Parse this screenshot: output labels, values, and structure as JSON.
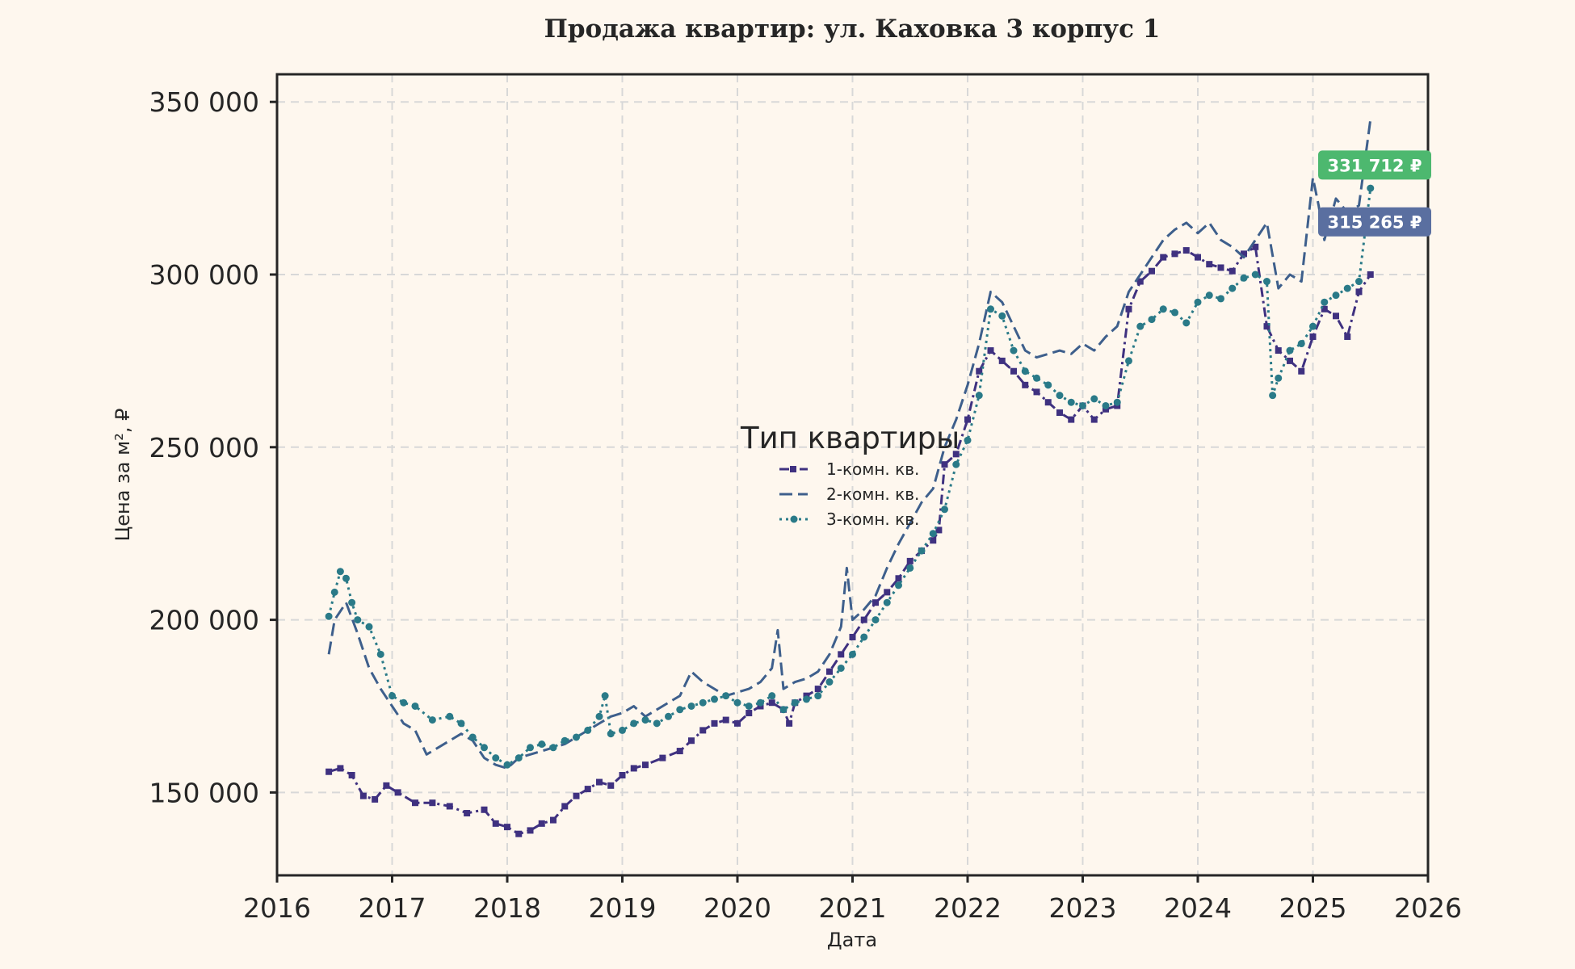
{
  "chart_data": {
    "type": "line",
    "title": "Продажа квартир: ул. Каховка 3 корпус 1",
    "xlabel": "Дата",
    "ylabel": "Цена за м², ₽",
    "xlim": [
      2016.0,
      2026.0
    ],
    "ylim": [
      126000,
      358000
    ],
    "x_ticks": [
      2016,
      2017,
      2018,
      2019,
      2020,
      2021,
      2022,
      2023,
      2024,
      2025,
      2026
    ],
    "x_tick_labels": [
      "2016",
      "2017",
      "2018",
      "2019",
      "2020",
      "2021",
      "2022",
      "2023",
      "2024",
      "2025",
      "2026"
    ],
    "y_ticks": [
      150000,
      200000,
      250000,
      300000,
      350000
    ],
    "y_tick_labels": [
      "150 000",
      "200 000",
      "250 000",
      "300 000",
      "350 000"
    ],
    "grid": true,
    "legend": {
      "title": "Тип квартиры",
      "position": "center"
    },
    "series": [
      {
        "name": "1-комн. кв.",
        "color": "#3F3180",
        "style": "dashdot-square",
        "x": [
          2016.45,
          2016.55,
          2016.65,
          2016.75,
          2016.85,
          2016.95,
          2017.05,
          2017.2,
          2017.35,
          2017.5,
          2017.65,
          2017.8,
          2017.9,
          2018.0,
          2018.1,
          2018.2,
          2018.3,
          2018.4,
          2018.5,
          2018.6,
          2018.7,
          2018.8,
          2018.9,
          2019.0,
          2019.1,
          2019.2,
          2019.35,
          2019.5,
          2019.6,
          2019.7,
          2019.8,
          2019.9,
          2020.0,
          2020.1,
          2020.2,
          2020.3,
          2020.4,
          2020.45,
          2020.5,
          2020.6,
          2020.7,
          2020.8,
          2020.9,
          2021.0,
          2021.1,
          2021.2,
          2021.3,
          2021.4,
          2021.5,
          2021.6,
          2021.7,
          2021.75,
          2021.8,
          2021.9,
          2022.0,
          2022.1,
          2022.2,
          2022.3,
          2022.4,
          2022.5,
          2022.6,
          2022.7,
          2022.8,
          2022.9,
          2023.0,
          2023.1,
          2023.2,
          2023.3,
          2023.4,
          2023.5,
          2023.6,
          2023.7,
          2023.8,
          2023.9,
          2024.0,
          2024.1,
          2024.2,
          2024.3,
          2024.4,
          2024.5,
          2024.6,
          2024.7,
          2024.8,
          2024.9,
          2025.0,
          2025.1,
          2025.2,
          2025.3,
          2025.4,
          2025.5
        ],
        "values": [
          156000,
          157000,
          155000,
          149000,
          148000,
          152000,
          150000,
          147000,
          147000,
          146000,
          144000,
          145000,
          141000,
          140000,
          138000,
          139000,
          141000,
          142000,
          146000,
          149000,
          151000,
          153000,
          152000,
          155000,
          157000,
          158000,
          160000,
          162000,
          165000,
          168000,
          170000,
          171000,
          170000,
          173000,
          175000,
          176000,
          174000,
          170000,
          176000,
          178000,
          180000,
          185000,
          190000,
          195000,
          200000,
          205000,
          208000,
          212000,
          217000,
          220000,
          223000,
          226000,
          245000,
          248000,
          258000,
          272000,
          278000,
          275000,
          272000,
          268000,
          266000,
          263000,
          260000,
          258000,
          262000,
          258000,
          261000,
          262000,
          290000,
          298000,
          301000,
          305000,
          306000,
          307000,
          305000,
          303000,
          302000,
          301000,
          306000,
          308000,
          285000,
          278000,
          275000,
          272000,
          282000,
          290000,
          288000,
          282000,
          295000,
          300000
        ]
      },
      {
        "name": "2-комн. кв.",
        "color": "#3E5F8C",
        "style": "dashed",
        "x": [
          2016.45,
          2016.5,
          2016.6,
          2016.7,
          2016.8,
          2016.9,
          2017.0,
          2017.1,
          2017.2,
          2017.3,
          2017.4,
          2017.5,
          2017.6,
          2017.7,
          2017.8,
          2017.9,
          2018.0,
          2018.1,
          2018.2,
          2018.3,
          2018.4,
          2018.5,
          2018.6,
          2018.7,
          2018.8,
          2018.9,
          2019.0,
          2019.1,
          2019.2,
          2019.3,
          2019.4,
          2019.5,
          2019.6,
          2019.7,
          2019.8,
          2019.9,
          2020.0,
          2020.1,
          2020.2,
          2020.3,
          2020.35,
          2020.4,
          2020.5,
          2020.6,
          2020.7,
          2020.8,
          2020.9,
          2020.95,
          2021.0,
          2021.1,
          2021.2,
          2021.3,
          2021.4,
          2021.5,
          2021.6,
          2021.7,
          2021.8,
          2021.9,
          2022.0,
          2022.1,
          2022.2,
          2022.3,
          2022.4,
          2022.5,
          2022.6,
          2022.7,
          2022.8,
          2022.9,
          2023.0,
          2023.1,
          2023.2,
          2023.3,
          2023.4,
          2023.5,
          2023.6,
          2023.7,
          2023.8,
          2023.9,
          2024.0,
          2024.1,
          2024.2,
          2024.3,
          2024.4,
          2024.5,
          2024.6,
          2024.7,
          2024.8,
          2024.9,
          2025.0,
          2025.05,
          2025.1,
          2025.2,
          2025.3,
          2025.4,
          2025.5
        ],
        "values": [
          190000,
          200000,
          205000,
          196000,
          186000,
          180000,
          175000,
          170000,
          168000,
          161000,
          163000,
          165000,
          167000,
          165000,
          160000,
          158000,
          157000,
          160000,
          161000,
          162000,
          163000,
          164000,
          166000,
          168000,
          170000,
          172000,
          173000,
          175000,
          172000,
          174000,
          176000,
          178000,
          185000,
          182000,
          180000,
          178000,
          179000,
          180000,
          182000,
          186000,
          197000,
          180000,
          182000,
          183000,
          185000,
          190000,
          198000,
          215000,
          200000,
          203000,
          207000,
          215000,
          222000,
          228000,
          234000,
          238000,
          250000,
          258000,
          268000,
          280000,
          295000,
          292000,
          285000,
          278000,
          276000,
          277000,
          278000,
          277000,
          280000,
          278000,
          282000,
          285000,
          295000,
          300000,
          305000,
          310000,
          313000,
          315000,
          312000,
          315000,
          310000,
          308000,
          305000,
          310000,
          315000,
          296000,
          300000,
          298000,
          328000,
          320000,
          310000,
          322000,
          318000,
          320000,
          345000
        ]
      },
      {
        "name": "3-комн. кв.",
        "color": "#2A7A88",
        "style": "dotted-circle",
        "x": [
          2016.45,
          2016.5,
          2016.55,
          2016.6,
          2016.65,
          2016.7,
          2016.8,
          2016.9,
          2017.0,
          2017.1,
          2017.2,
          2017.35,
          2017.5,
          2017.6,
          2017.7,
          2017.8,
          2017.9,
          2018.0,
          2018.1,
          2018.2,
          2018.3,
          2018.4,
          2018.5,
          2018.6,
          2018.7,
          2018.8,
          2018.85,
          2018.9,
          2019.0,
          2019.1,
          2019.2,
          2019.3,
          2019.4,
          2019.5,
          2019.6,
          2019.7,
          2019.8,
          2019.9,
          2020.0,
          2020.1,
          2020.2,
          2020.3,
          2020.4,
          2020.5,
          2020.6,
          2020.7,
          2020.8,
          2020.9,
          2021.0,
          2021.1,
          2021.2,
          2021.3,
          2021.4,
          2021.5,
          2021.6,
          2021.7,
          2021.8,
          2021.9,
          2022.0,
          2022.1,
          2022.2,
          2022.3,
          2022.4,
          2022.5,
          2022.6,
          2022.7,
          2022.8,
          2022.9,
          2023.0,
          2023.1,
          2023.2,
          2023.3,
          2023.4,
          2023.5,
          2023.6,
          2023.7,
          2023.8,
          2023.9,
          2024.0,
          2024.1,
          2024.2,
          2024.3,
          2024.4,
          2024.5,
          2024.6,
          2024.65,
          2024.7,
          2024.8,
          2024.9,
          2025.0,
          2025.1,
          2025.2,
          2025.3,
          2025.4,
          2025.5
        ],
        "values": [
          201000,
          208000,
          214000,
          212000,
          205000,
          200000,
          198000,
          190000,
          178000,
          176000,
          175000,
          171000,
          172000,
          170000,
          166000,
          163000,
          160000,
          158000,
          160000,
          163000,
          164000,
          163000,
          165000,
          166000,
          168000,
          172000,
          178000,
          167000,
          168000,
          170000,
          171000,
          170000,
          172000,
          174000,
          175000,
          176000,
          177000,
          178000,
          176000,
          175000,
          176000,
          178000,
          174000,
          176000,
          177000,
          178000,
          182000,
          186000,
          190000,
          195000,
          200000,
          205000,
          210000,
          215000,
          220000,
          225000,
          232000,
          245000,
          252000,
          265000,
          290000,
          288000,
          278000,
          272000,
          270000,
          268000,
          265000,
          263000,
          262000,
          264000,
          262000,
          263000,
          275000,
          285000,
          287000,
          290000,
          289000,
          286000,
          292000,
          294000,
          293000,
          296000,
          299000,
          300000,
          298000,
          265000,
          270000,
          278000,
          280000,
          285000,
          292000,
          294000,
          296000,
          298000,
          325000
        ]
      }
    ],
    "annotations": [
      {
        "text": "331 712 ₽",
        "value": 331712,
        "color": "#4DB86F"
      },
      {
        "text": "315 265 ₽",
        "value": 315265,
        "color": "#5A6FA0"
      }
    ]
  }
}
